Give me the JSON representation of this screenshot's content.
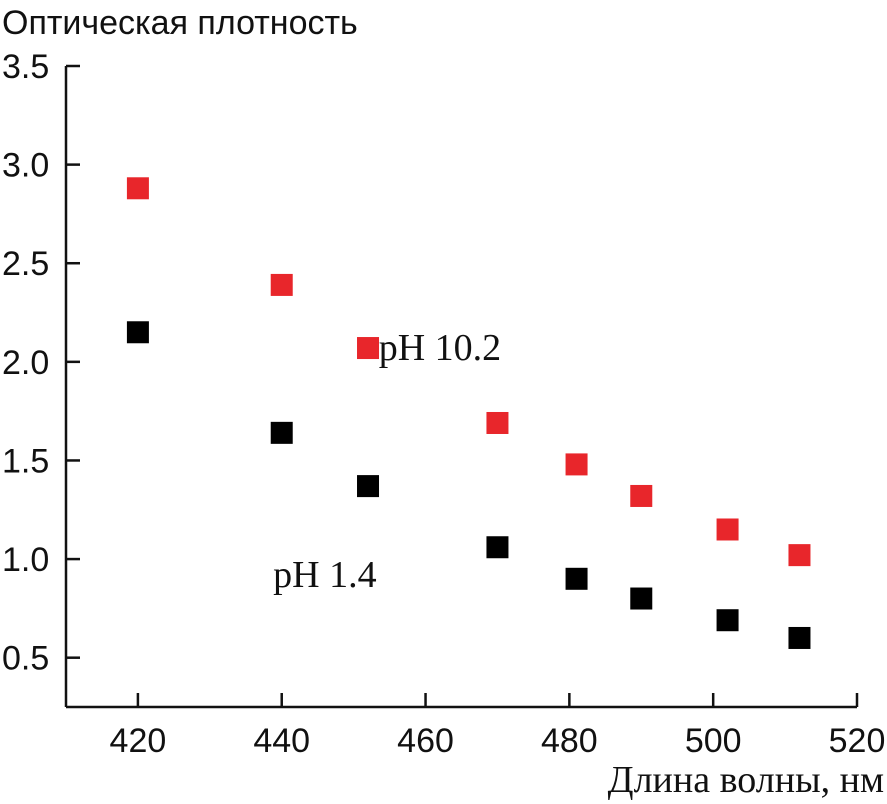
{
  "chart_data": {
    "type": "scatter",
    "title": "",
    "ylabel": "Оптическая плотность",
    "xlabel": "Длина волны, нм",
    "xlim": [
      410,
      520
    ],
    "ylim": [
      0.25,
      3.5
    ],
    "xticks": [
      420,
      440,
      460,
      480,
      500,
      520
    ],
    "xtick_labels": [
      "420",
      "440",
      "460",
      "480",
      "500",
      "520"
    ],
    "yticks": [
      0.5,
      1.0,
      1.5,
      2.0,
      2.5,
      3.0,
      3.5
    ],
    "ytick_labels": [
      "0.5",
      "1.0",
      "1.5",
      "2.0",
      "2.5",
      "3.0",
      "3.5"
    ],
    "grid": false,
    "marker": "square",
    "series": [
      {
        "name": "pH 10.2",
        "color": "#e8262b",
        "x": [
          420,
          440,
          452,
          470,
          481,
          490,
          502,
          512
        ],
        "y": [
          2.88,
          2.39,
          2.07,
          1.69,
          1.48,
          1.32,
          1.15,
          1.02
        ]
      },
      {
        "name": "pH 1.4",
        "color": "#000000",
        "x": [
          420,
          440,
          452,
          470,
          481,
          490,
          502,
          512
        ],
        "y": [
          2.15,
          1.64,
          1.37,
          1.06,
          0.9,
          0.8,
          0.69,
          0.6
        ]
      }
    ],
    "annotations": [
      {
        "text": "pH 10.2",
        "series": "pH 10.2",
        "x": 462,
        "y": 2.07
      },
      {
        "text": "pH 1.4",
        "series": "pH 1.4",
        "x": 446,
        "y": 0.92
      }
    ]
  }
}
